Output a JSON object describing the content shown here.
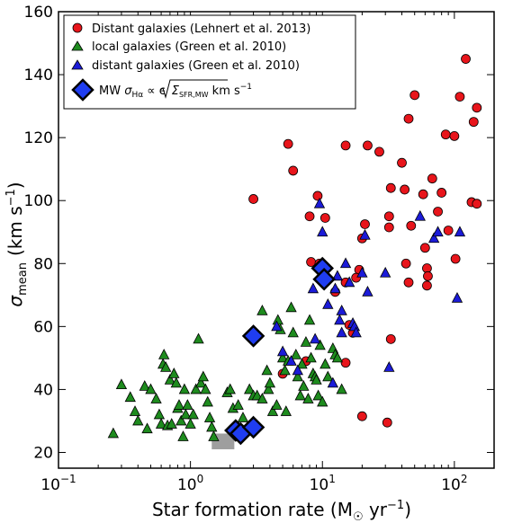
{
  "chart_data": {
    "type": "scatter",
    "xscale": "log",
    "xlim": [
      0.1,
      200
    ],
    "ylim": [
      15,
      160
    ],
    "xticks": [
      {
        "value": 0.1,
        "base": "10",
        "exp": "−1"
      },
      {
        "value": 1,
        "base": "10",
        "exp": "0"
      },
      {
        "value": 10,
        "base": "10",
        "exp": "1"
      },
      {
        "value": 100,
        "base": "10",
        "exp": "2"
      }
    ],
    "yticks": [
      20,
      40,
      60,
      80,
      100,
      120,
      140,
      160
    ],
    "xlabel": {
      "main": "Star formation rate (M",
      "sub": "☉",
      "unit": " yr",
      "sup": "−1",
      "close": ")"
    },
    "ylabel": {
      "sigma": "σ",
      "sub": "mean",
      "unit": "(km s",
      "sup": "−1",
      "close": ")"
    },
    "legend": {
      "position": "top-left",
      "entries": [
        "Distant galaxies (Lehnert et al. 2013)",
        "local galaxies (Green et al. 2010)",
        "distant galaxies (Green et al. 2010)"
      ],
      "mw_entry": {
        "prefix": "MW ",
        "sigma": "σ",
        "sigma_sub": "Hα",
        "rel": " ∝ ϵ",
        "sigma2": "Σ",
        "sigma2_sub": "SFR,MW",
        "suffix": " km s",
        "suffix_sup": "−1"
      }
    },
    "colors": {
      "red": "#e8151b",
      "green": "#1e8b1e",
      "blue": "#1b1bd8",
      "mw": "#1f3df0",
      "gray": "#9e9e9e"
    },
    "series": [
      {
        "name": "Distant galaxies (Lehnert et al. 2013)",
        "marker": "circle",
        "points": [
          [
            3.0,
            100.5
          ],
          [
            5.5,
            118
          ],
          [
            6.0,
            109.5
          ],
          [
            8.0,
            95
          ],
          [
            8.2,
            80.5
          ],
          [
            9.2,
            101.5
          ],
          [
            10.5,
            94.5
          ],
          [
            9.5,
            80
          ],
          [
            15,
            117.5
          ],
          [
            22,
            117.5
          ],
          [
            27,
            115.5
          ],
          [
            33,
            104
          ],
          [
            32,
            95
          ],
          [
            40,
            112
          ],
          [
            42,
            103.5
          ],
          [
            47,
            92
          ],
          [
            43,
            80
          ],
          [
            45,
            74
          ],
          [
            58,
            102
          ],
          [
            68,
            107
          ],
          [
            75,
            96.5
          ],
          [
            80,
            102.5
          ],
          [
            86,
            121
          ],
          [
            90,
            90.5
          ],
          [
            100,
            120.5
          ],
          [
            122,
            145
          ],
          [
            110,
            133
          ],
          [
            148,
            129.5
          ],
          [
            140,
            125
          ],
          [
            135,
            99.5
          ],
          [
            148,
            99
          ],
          [
            102,
            81.5
          ],
          [
            62,
            78.5
          ],
          [
            63,
            76
          ],
          [
            62,
            73
          ],
          [
            60,
            85
          ],
          [
            45,
            126
          ],
          [
            50,
            133.5
          ],
          [
            21,
            92.5
          ],
          [
            20,
            88
          ],
          [
            19,
            78
          ],
          [
            18,
            75.5
          ],
          [
            16,
            60.5
          ],
          [
            17,
            58
          ],
          [
            15,
            48.5
          ],
          [
            32,
            91.5
          ],
          [
            33,
            56
          ],
          [
            20,
            31.5
          ],
          [
            31,
            29.5
          ],
          [
            5.0,
            45
          ],
          [
            7.5,
            49
          ],
          [
            10.5,
            78
          ],
          [
            12.5,
            71
          ],
          [
            15,
            74
          ]
        ]
      },
      {
        "name": "local galaxies (Green et al. 2010)",
        "marker": "triangle",
        "points": [
          [
            0.26,
            26
          ],
          [
            0.3,
            41.5
          ],
          [
            0.35,
            37.5
          ],
          [
            0.38,
            33
          ],
          [
            0.4,
            30
          ],
          [
            0.45,
            41
          ],
          [
            0.47,
            27.5
          ],
          [
            0.5,
            40
          ],
          [
            0.55,
            37
          ],
          [
            0.58,
            32
          ],
          [
            0.6,
            29
          ],
          [
            0.62,
            48
          ],
          [
            0.63,
            51
          ],
          [
            0.65,
            47
          ],
          [
            0.67,
            28.5
          ],
          [
            0.7,
            43
          ],
          [
            0.72,
            29
          ],
          [
            0.75,
            45
          ],
          [
            0.78,
            42
          ],
          [
            0.8,
            34
          ],
          [
            0.82,
            35
          ],
          [
            0.85,
            30
          ],
          [
            0.88,
            25
          ],
          [
            0.9,
            40
          ],
          [
            0.92,
            32
          ],
          [
            0.95,
            35
          ],
          [
            1.0,
            29
          ],
          [
            1.05,
            32
          ],
          [
            1.1,
            40
          ],
          [
            1.15,
            56
          ],
          [
            1.2,
            42
          ],
          [
            1.25,
            44
          ],
          [
            1.3,
            40
          ],
          [
            1.35,
            36
          ],
          [
            1.4,
            31
          ],
          [
            1.45,
            28
          ],
          [
            1.5,
            25
          ],
          [
            1.9,
            39
          ],
          [
            2.0,
            40
          ],
          [
            2.1,
            34
          ],
          [
            2.3,
            35
          ],
          [
            2.5,
            31
          ],
          [
            2.8,
            40
          ],
          [
            3.0,
            38
          ],
          [
            3.2,
            38
          ],
          [
            3.5,
            37
          ],
          [
            3.8,
            46
          ],
          [
            3.9,
            40
          ],
          [
            4.0,
            42
          ],
          [
            4.2,
            33
          ],
          [
            4.5,
            35
          ],
          [
            4.6,
            62
          ],
          [
            4.8,
            59
          ],
          [
            5.0,
            50
          ],
          [
            5.2,
            46
          ],
          [
            5.3,
            33
          ],
          [
            5.5,
            49
          ],
          [
            6.0,
            58
          ],
          [
            6.5,
            44
          ],
          [
            6.8,
            38
          ],
          [
            7.0,
            48
          ],
          [
            7.2,
            41
          ],
          [
            7.5,
            55
          ],
          [
            7.8,
            37
          ],
          [
            8.0,
            62
          ],
          [
            8.2,
            50
          ],
          [
            8.5,
            45
          ],
          [
            8.8,
            44
          ],
          [
            9.0,
            43
          ],
          [
            9.3,
            38
          ],
          [
            9.6,
            54
          ],
          [
            10.0,
            36
          ],
          [
            10.5,
            48
          ],
          [
            11.0,
            44
          ],
          [
            12.0,
            53
          ],
          [
            12.5,
            51
          ],
          [
            13.0,
            50
          ],
          [
            14.0,
            40
          ],
          [
            6.3,
            51
          ],
          [
            5.8,
            66
          ],
          [
            3.5,
            65
          ]
        ]
      },
      {
        "name": "distant galaxies (Green et al. 2010)",
        "marker": "triangle",
        "points": [
          [
            4.5,
            60
          ],
          [
            5.0,
            52
          ],
          [
            5.8,
            49
          ],
          [
            6.5,
            46
          ],
          [
            8.5,
            72
          ],
          [
            8.8,
            56
          ],
          [
            9.5,
            99
          ],
          [
            10.0,
            90
          ],
          [
            11.0,
            67
          ],
          [
            12.0,
            42
          ],
          [
            12.5,
            72
          ],
          [
            13.0,
            76
          ],
          [
            13.5,
            62
          ],
          [
            14.0,
            58
          ],
          [
            15.0,
            80
          ],
          [
            16.0,
            74
          ],
          [
            17.0,
            61
          ],
          [
            17.5,
            60
          ],
          [
            18.0,
            58
          ],
          [
            20.0,
            77
          ],
          [
            21.0,
            89
          ],
          [
            22.0,
            71
          ],
          [
            30.0,
            77
          ],
          [
            32.0,
            47
          ],
          [
            55.0,
            95
          ],
          [
            70.0,
            88
          ],
          [
            75.0,
            90
          ],
          [
            105.0,
            69
          ],
          [
            110.0,
            90
          ],
          [
            14.0,
            65
          ]
        ]
      },
      {
        "name": "MW",
        "marker": "diamond",
        "points": [
          [
            2.2,
            27
          ],
          [
            2.4,
            26
          ],
          [
            3.0,
            28
          ],
          [
            3.0,
            57
          ],
          [
            10.0,
            78.5
          ],
          [
            10.3,
            75
          ]
        ]
      }
    ],
    "gray_box": {
      "x": [
        1.45,
        2.15
      ],
      "y": [
        21,
        26
      ]
    }
  }
}
